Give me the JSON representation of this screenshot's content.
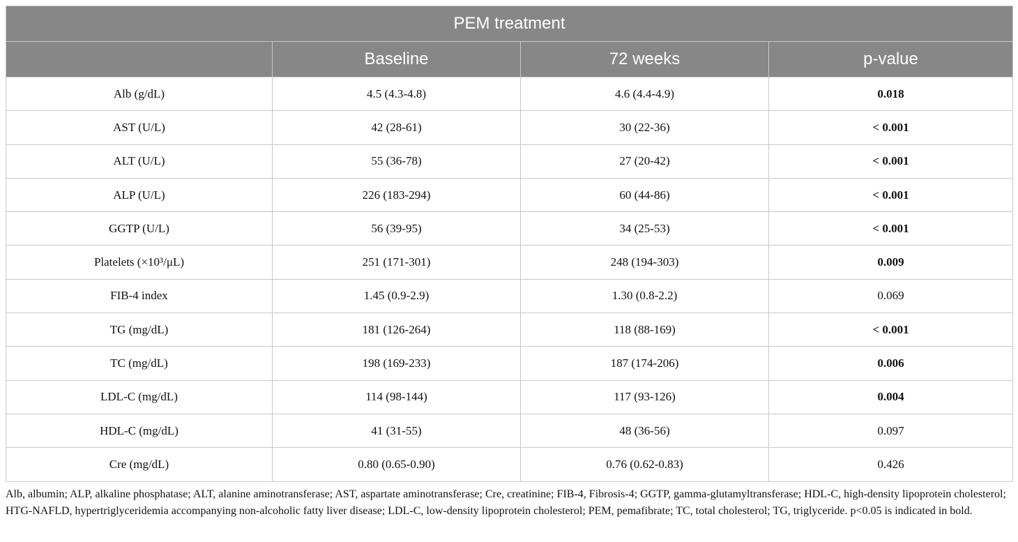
{
  "table": {
    "title": "PEM treatment",
    "columns": [
      "Baseline",
      "72 weeks",
      "p-value"
    ],
    "rows": [
      {
        "label": "Alb (g/dL)",
        "baseline": "4.5 (4.3-4.8)",
        "week72": "4.6 (4.4-4.9)",
        "p": "0.018",
        "bold": true
      },
      {
        "label": "AST (U/L)",
        "baseline": "42 (28-61)",
        "week72": "30 (22-36)",
        "p": "< 0.001",
        "bold": true
      },
      {
        "label": "ALT (U/L)",
        "baseline": "55 (36-78)",
        "week72": "27 (20-42)",
        "p": "< 0.001",
        "bold": true
      },
      {
        "label": "ALP (U/L)",
        "baseline": "226 (183-294)",
        "week72": "60 (44-86)",
        "p": "< 0.001",
        "bold": true
      },
      {
        "label": "GGTP (U/L)",
        "baseline": "56 (39-95)",
        "week72": "34 (25-53)",
        "p": "< 0.001",
        "bold": true
      },
      {
        "label": "Platelets (×10³/μL)",
        "baseline": "251 (171-301)",
        "week72": "248 (194-303)",
        "p": "0.009",
        "bold": true
      },
      {
        "label": "FIB-4 index",
        "baseline": "1.45 (0.9-2.9)",
        "week72": "1.30 (0.8-2.2)",
        "p": "0.069",
        "bold": false
      },
      {
        "label": "TG (mg/dL)",
        "baseline": "181 (126-264)",
        "week72": "118 (88-169)",
        "p": "< 0.001",
        "bold": true
      },
      {
        "label": "TC (mg/dL)",
        "baseline": "198 (169-233)",
        "week72": "187 (174-206)",
        "p": "0.006",
        "bold": true
      },
      {
        "label": "LDL-C (mg/dL)",
        "baseline": "114 (98-144)",
        "week72": "117 (93-126)",
        "p": "0.004",
        "bold": true
      },
      {
        "label": "HDL-C (mg/dL)",
        "baseline": "41 (31-55)",
        "week72": "48 (36-56)",
        "p": "0.097",
        "bold": false
      },
      {
        "label": "Cre (mg/dL)",
        "baseline": "0.80 (0.65-0.90)",
        "week72": "0.76 (0.62-0.83)",
        "p": "0.426",
        "bold": false
      }
    ]
  },
  "footnote": "Alb, albumin; ALP, alkaline phosphatase; ALT, alanine aminotransferase; AST, aspartate aminotransferase; Cre, creatinine; FIB-4, Fibrosis-4; GGTP, gamma-glutamyltransferase; HDL-C, high-density lipoprotein cholesterol; HTG-NAFLD, hypertriglyceridemia accompanying non-alcoholic fatty liver disease; LDL-C, low-density lipoprotein cholesterol; PEM, pemafibrate; TC, total cholesterol; TG, triglyceride. p<0.05 is indicated in bold."
}
